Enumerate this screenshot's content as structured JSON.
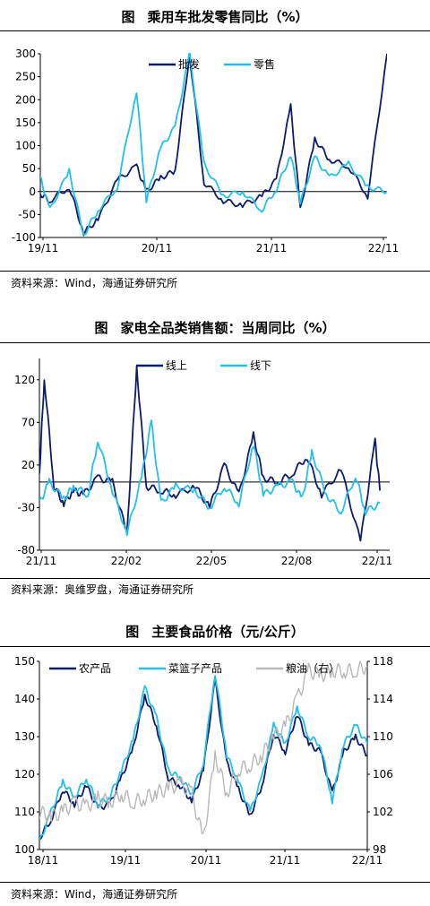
{
  "chart_data": [
    {
      "type": "line",
      "figure_label": "图",
      "title": "乘用车批发零售同比（%）",
      "source": "资料来源：Wind，海通证券研究所",
      "x_tick_labels": [
        "19/11",
        "20/11",
        "21/11",
        "22/11"
      ],
      "y_tick_labels": [
        "-100",
        "-50",
        "0",
        "50",
        "100",
        "150",
        "200",
        "250",
        "300"
      ],
      "ylim": [
        -100,
        300
      ],
      "grid": false,
      "legend": "top-center",
      "colors": {
        "批发": "#0d1b6b",
        "零售": "#22c0ea"
      },
      "x": [
        0,
        2,
        4,
        6,
        8,
        10,
        12,
        14,
        16,
        18,
        20,
        22,
        24,
        26,
        28,
        30,
        32,
        34,
        36
      ],
      "series": [
        {
          "name": "批发",
          "values": [
            -5,
            -20,
            10,
            -90,
            -60,
            25,
            55,
            0,
            30,
            45,
            300,
            20,
            -20,
            -30,
            -10,
            25,
            185,
            -40,
            115,
            70,
            55,
            -10,
            300
          ],
          "x": [
            0,
            1,
            3,
            4.5,
            6,
            8,
            10,
            11,
            12.5,
            14,
            15.5,
            17,
            19,
            21,
            23,
            24.5,
            26,
            27,
            28.5,
            30,
            32,
            34,
            36
          ]
        },
        {
          "name": "零售",
          "values": [
            30,
            -40,
            45,
            -95,
            -40,
            10,
            220,
            -20,
            95,
            140,
            300,
            60,
            -10,
            0,
            -40,
            5,
            80,
            -25,
            75,
            30,
            60,
            10,
            0
          ],
          "x": [
            0,
            1,
            3,
            4.5,
            6,
            8,
            10,
            11,
            12.5,
            14,
            15.5,
            17,
            19,
            21,
            23,
            24.5,
            26,
            27,
            28.5,
            30,
            32,
            34,
            36
          ]
        }
      ]
    },
    {
      "type": "line",
      "figure_label": "图",
      "title": "家电全品类销售额：当周同比（%）",
      "source": "资料来源：奥维罗盘，海通证券研究所",
      "x_tick_labels": [
        "21/11",
        "22/02",
        "22/05",
        "22/08",
        "22/11"
      ],
      "y_tick_labels": [
        "-80",
        "-30",
        "20",
        "70",
        "120"
      ],
      "ylim": [
        -80,
        145
      ],
      "grid": false,
      "legend": "top-center",
      "colors": {
        "线上": "#0d1b6b",
        "线下": "#22c0ea"
      },
      "series": [
        {
          "name": "线上",
          "values": [
            10,
            122,
            -5,
            -25,
            -10,
            -15,
            5,
            0,
            -60,
            135,
            -5,
            -10,
            -15,
            -5,
            -30,
            20,
            -15,
            55,
            5,
            0,
            10,
            30,
            -15,
            15,
            -70,
            48,
            -10
          ],
          "x": [
            0,
            0.5,
            1.5,
            2.5,
            3.5,
            4.5,
            6,
            7.5,
            9,
            10,
            11,
            12.5,
            14,
            16,
            17.5,
            19,
            20.5,
            22,
            23,
            24.5,
            26,
            27.5,
            29,
            31,
            33,
            34.5,
            35
          ]
        },
        {
          "name": "线下",
          "values": [
            -25,
            0,
            -20,
            -5,
            -15,
            50,
            -10,
            -60,
            5,
            70,
            -25,
            -5,
            -10,
            -30,
            -5,
            -25,
            45,
            -15,
            -5,
            0,
            -20,
            35,
            -15,
            -35,
            8,
            -35,
            -25
          ],
          "x": [
            0,
            1,
            2.5,
            3.5,
            5,
            6,
            7.5,
            9,
            10.5,
            11.5,
            12.5,
            14,
            16,
            17.5,
            19,
            20.5,
            22,
            23,
            24.5,
            26,
            27,
            28,
            29.5,
            31,
            32.5,
            33.5,
            35
          ]
        }
      ]
    },
    {
      "type": "line",
      "figure_label": "图",
      "title": "主要食品价格（元/公斤）",
      "source": "资料来源：Wind，海通证券研究所",
      "x_tick_labels": [
        "18/11",
        "19/11",
        "20/11",
        "21/11",
        "22/11"
      ],
      "y_tick_labels": [
        "100",
        "110",
        "120",
        "130",
        "140",
        "150"
      ],
      "y2_tick_labels": [
        "98",
        "102",
        "106",
        "110",
        "114",
        "118"
      ],
      "ylim": [
        100,
        150
      ],
      "y2lim": [
        98,
        118
      ],
      "grid": false,
      "legend": "top",
      "colors": {
        "农产品": "#0d1b6b",
        "菜篮子产品": "#22c0ea",
        "粮油（右）": "#b8b8b8"
      },
      "series": [
        {
          "name": "农产品",
          "axis": "left",
          "values": [
            103,
            108,
            116,
            112,
            117,
            111,
            112,
            119,
            127,
            141,
            133,
            119,
            117,
            113,
            121,
            145,
            123,
            116,
            109,
            117,
            131,
            126,
            136,
            128,
            126,
            115,
            126,
            130,
            125
          ],
          "x": [
            0,
            1,
            2,
            3,
            4,
            5,
            6,
            7,
            8,
            9,
            10,
            11,
            12,
            13,
            14,
            15,
            16,
            17,
            18,
            19,
            20,
            21,
            22,
            23,
            24,
            25,
            26,
            27,
            28
          ]
        },
        {
          "name": "菜篮子产品",
          "axis": "left",
          "values": [
            102,
            110,
            118,
            114,
            119,
            112,
            114,
            121,
            129,
            143,
            135,
            121,
            119,
            115,
            123,
            147,
            125,
            118,
            110,
            119,
            133,
            128,
            138,
            130,
            128,
            113,
            128,
            133,
            128
          ],
          "x": [
            0,
            1,
            2,
            3,
            4,
            5,
            6,
            7,
            8,
            9,
            10,
            11,
            12,
            13,
            14,
            15,
            16,
            17,
            18,
            19,
            20,
            21,
            22,
            23,
            24,
            25,
            26,
            27,
            28
          ]
        },
        {
          "name": "粮油（右）",
          "axis": "right",
          "values": [
            102,
            101.5,
            102,
            103,
            102.5,
            103.5,
            103,
            104,
            103,
            103.5,
            104,
            104.5,
            105,
            104,
            99,
            108,
            104,
            106.5,
            107,
            108,
            110,
            111,
            114,
            117,
            116.5,
            117,
            117,
            117,
            117.5
          ],
          "x": [
            0,
            1,
            2,
            3,
            4,
            5,
            6,
            7,
            8,
            9,
            10,
            11,
            12,
            13,
            14,
            15,
            16,
            17,
            18,
            19,
            20,
            21,
            22,
            23,
            24,
            25,
            26,
            27,
            28
          ]
        }
      ]
    }
  ]
}
